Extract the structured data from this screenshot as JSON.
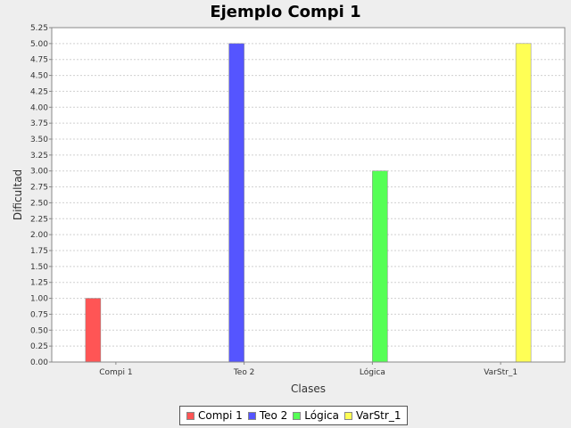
{
  "chart_data": {
    "type": "bar",
    "title": "Ejemplo Compi 1",
    "xlabel": "Clases",
    "ylabel": "Dificultad",
    "categories": [
      "Compi 1",
      "Teo 2",
      "Lógica",
      "VarStr_1"
    ],
    "series": [
      {
        "name": "Compi 1",
        "color": "#ff5555",
        "values": [
          1.0,
          null,
          null,
          null
        ]
      },
      {
        "name": "Teo 2",
        "color": "#5555ff",
        "values": [
          null,
          5.0,
          null,
          null
        ]
      },
      {
        "name": "Lógica",
        "color": "#55ff55",
        "values": [
          null,
          null,
          3.0,
          null
        ]
      },
      {
        "name": "VarStr_1",
        "color": "#ffff55",
        "values": [
          null,
          null,
          null,
          5.0
        ]
      }
    ],
    "ylim": [
      0,
      5.25
    ],
    "ytick_step": 0.25,
    "grid": true,
    "legend_position": "bottom"
  }
}
